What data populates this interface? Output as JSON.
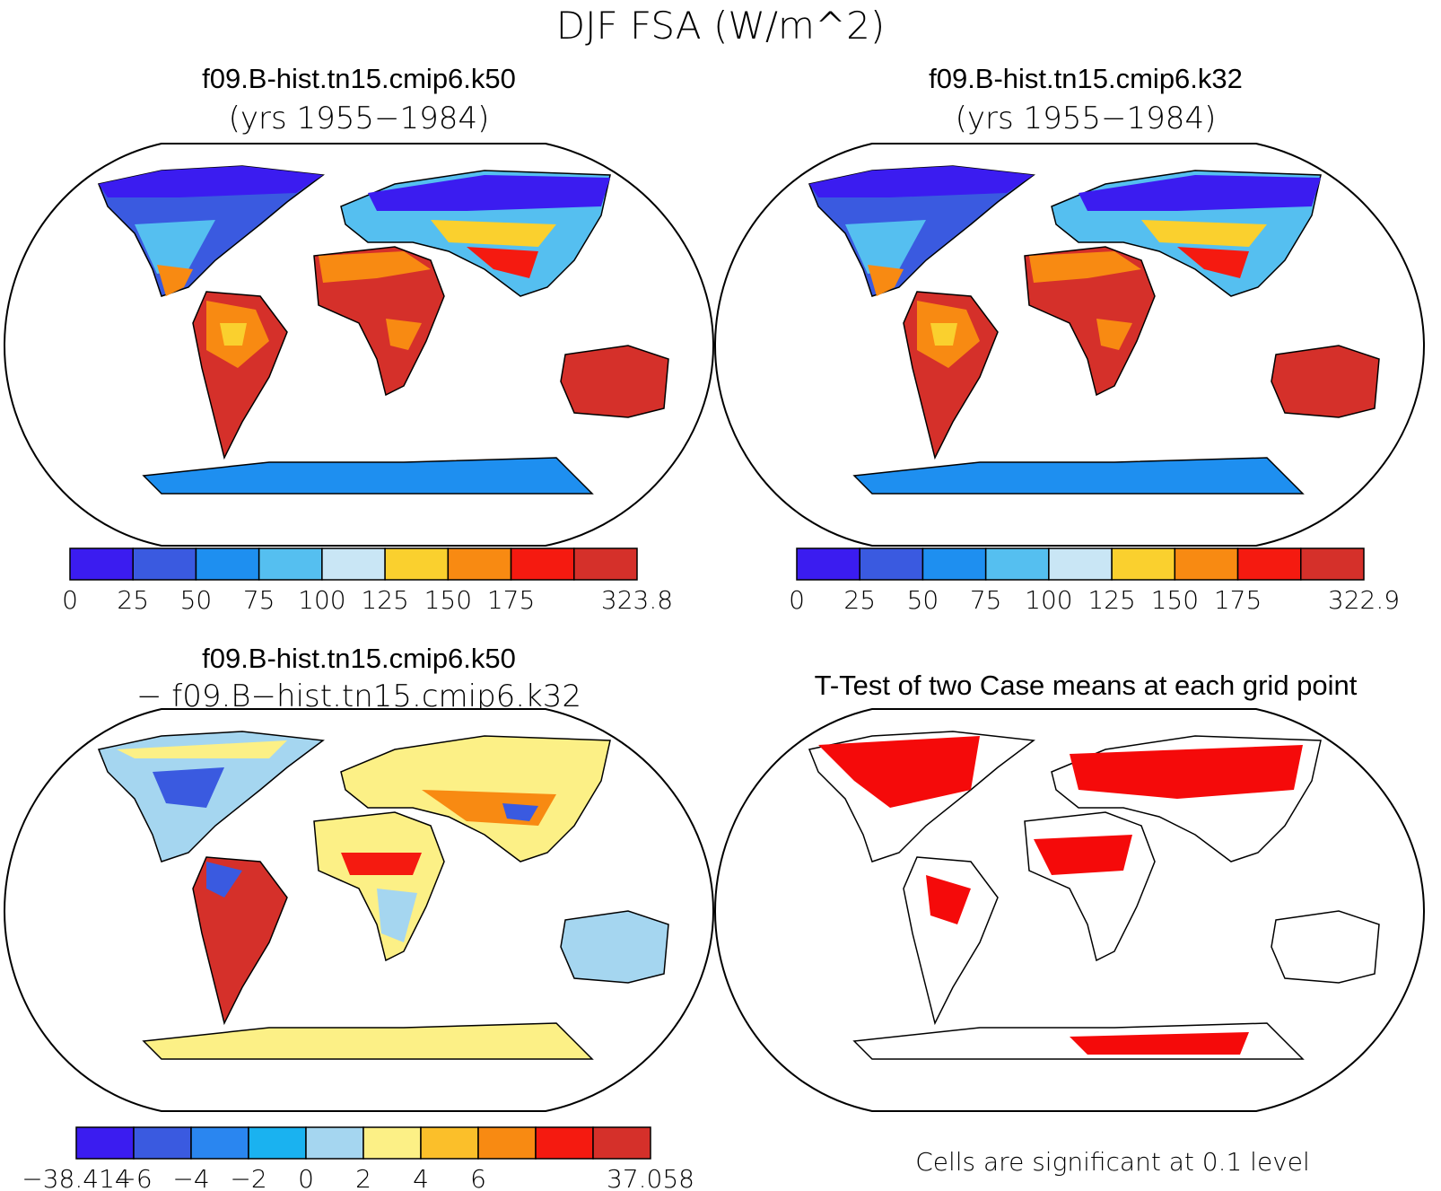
{
  "main_title": "DJF FSA (W/m^2)",
  "panels": {
    "case1": {
      "title": "f09.B-hist.tn15.cmip6.k50",
      "years": "(yrs 1955−1984)",
      "colorbar": {
        "colors": [
          "#3b1cf0",
          "#3a5ae0",
          "#1e8ff0",
          "#55bff0",
          "#c9e6f5",
          "#fad02e",
          "#f88a12",
          "#f51a10",
          "#d5302a"
        ],
        "ticks": [
          "0",
          "25",
          "50",
          "75",
          "100",
          "125",
          "150",
          "175",
          "323.8"
        ]
      }
    },
    "case2": {
      "title": "f09.B-hist.tn15.cmip6.k32",
      "years": "(yrs 1955−1984)",
      "colorbar": {
        "colors": [
          "#3b1cf0",
          "#3a5ae0",
          "#1e8ff0",
          "#55bff0",
          "#c9e6f5",
          "#fad02e",
          "#f88a12",
          "#f51a10",
          "#d5302a"
        ],
        "ticks": [
          "0",
          "25",
          "50",
          "75",
          "100",
          "125",
          "150",
          "175",
          "322.9"
        ]
      }
    },
    "diff": {
      "title": "f09.B-hist.tn15.cmip6.k50",
      "subtitle": "− f09.B−hist.tn15.cmip6.k32",
      "colorbar": {
        "colors": [
          "#3b1cf0",
          "#3a5ae0",
          "#2a86f0",
          "#1ab2f0",
          "#a5d6f0",
          "#fcf086",
          "#fbbf2a",
          "#f88a12",
          "#f51a10",
          "#d5302a"
        ],
        "ticks": [
          "−38.414",
          "−6",
          "−4",
          "−2",
          "0",
          "2",
          "4",
          "6",
          "37.058"
        ]
      }
    },
    "ttest": {
      "title": "T-Test of two Case means at each grid point",
      "note": "Cells are significant at 0.1 level",
      "sig_color": "#f50a0a"
    }
  }
}
